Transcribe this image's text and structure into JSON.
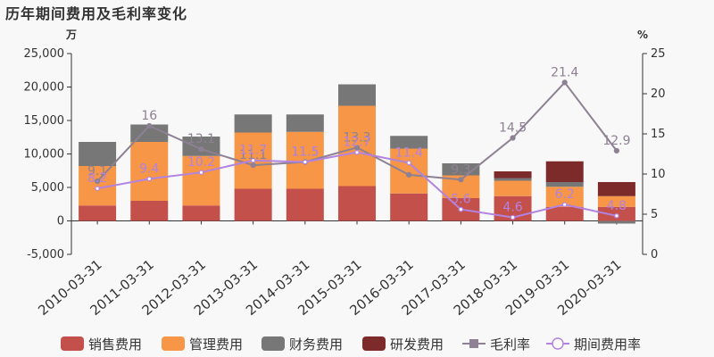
{
  "title": "历年期间费用及毛利率变化",
  "chart_data": {
    "type": "bar",
    "title": "历年期间费用及毛利率变化",
    "categories": [
      "2010-03-31",
      "2011-03-31",
      "2012-03-31",
      "2013-03-31",
      "2014-03-31",
      "2015-03-31",
      "2016-03-31",
      "2017-03-31",
      "2018-03-31",
      "2019-03-31",
      "2020-03-31"
    ],
    "left_axis": {
      "unit": "万",
      "min": -5000,
      "max": 25000,
      "ticks": [
        "25,000",
        "20,000",
        "15,000",
        "10,000",
        "5,000",
        "0",
        "-5,000"
      ]
    },
    "right_axis": {
      "unit": "%",
      "min": 0,
      "max": 25,
      "ticks": [
        "25",
        "20",
        "15",
        "10",
        "5",
        "0"
      ]
    },
    "stacked": true,
    "series": [
      {
        "name": "销售费用",
        "type": "bar",
        "color": "#c4504c",
        "values": [
          2300,
          3000,
          2300,
          4800,
          4800,
          5200,
          4100,
          3400,
          3700,
          2100,
          2100
        ]
      },
      {
        "name": "管理费用",
        "type": "bar",
        "color": "#f69646",
        "values": [
          5900,
          8800,
          7400,
          8400,
          8500,
          12000,
          6700,
          3400,
          2300,
          3000,
          1600
        ]
      },
      {
        "name": "财务费用",
        "type": "bar",
        "color": "#777777",
        "values": [
          3600,
          2600,
          2900,
          2700,
          2600,
          3200,
          1900,
          1800,
          400,
          700,
          -400
        ]
      },
      {
        "name": "研发费用",
        "type": "bar",
        "color": "#7c2a2a",
        "values": [
          0,
          0,
          0,
          0,
          0,
          0,
          0,
          0,
          1000,
          3100,
          2100
        ]
      },
      {
        "name": "毛利率",
        "type": "line",
        "axis": "right",
        "color": "#8d8193",
        "values": [
          9.1,
          16,
          13.1,
          11.1,
          11.5,
          13.3,
          9.9,
          9.3,
          14.5,
          21.4,
          12.9
        ]
      },
      {
        "name": "期间费用率",
        "type": "line",
        "axis": "right",
        "color": "#b283e0",
        "values": [
          8.2,
          9.4,
          10.2,
          11.7,
          11.5,
          12.7,
          11.4,
          5.6,
          4.6,
          6.2,
          4.8
        ]
      }
    ],
    "data_labels": {
      "毛利率": [
        "9.1",
        "16",
        "13.1",
        "11.1",
        "11.5",
        "13.3",
        "",
        "9.3",
        "14.5",
        "21.4",
        "12.9"
      ],
      "期间费用率": [
        "8.2",
        "9.4",
        "10.2",
        "11.7",
        "11.5",
        "12.7",
        "11.4",
        "5.6",
        "4.6",
        "6.2",
        "4.8"
      ]
    },
    "legend": {
      "position": "bottom"
    }
  }
}
